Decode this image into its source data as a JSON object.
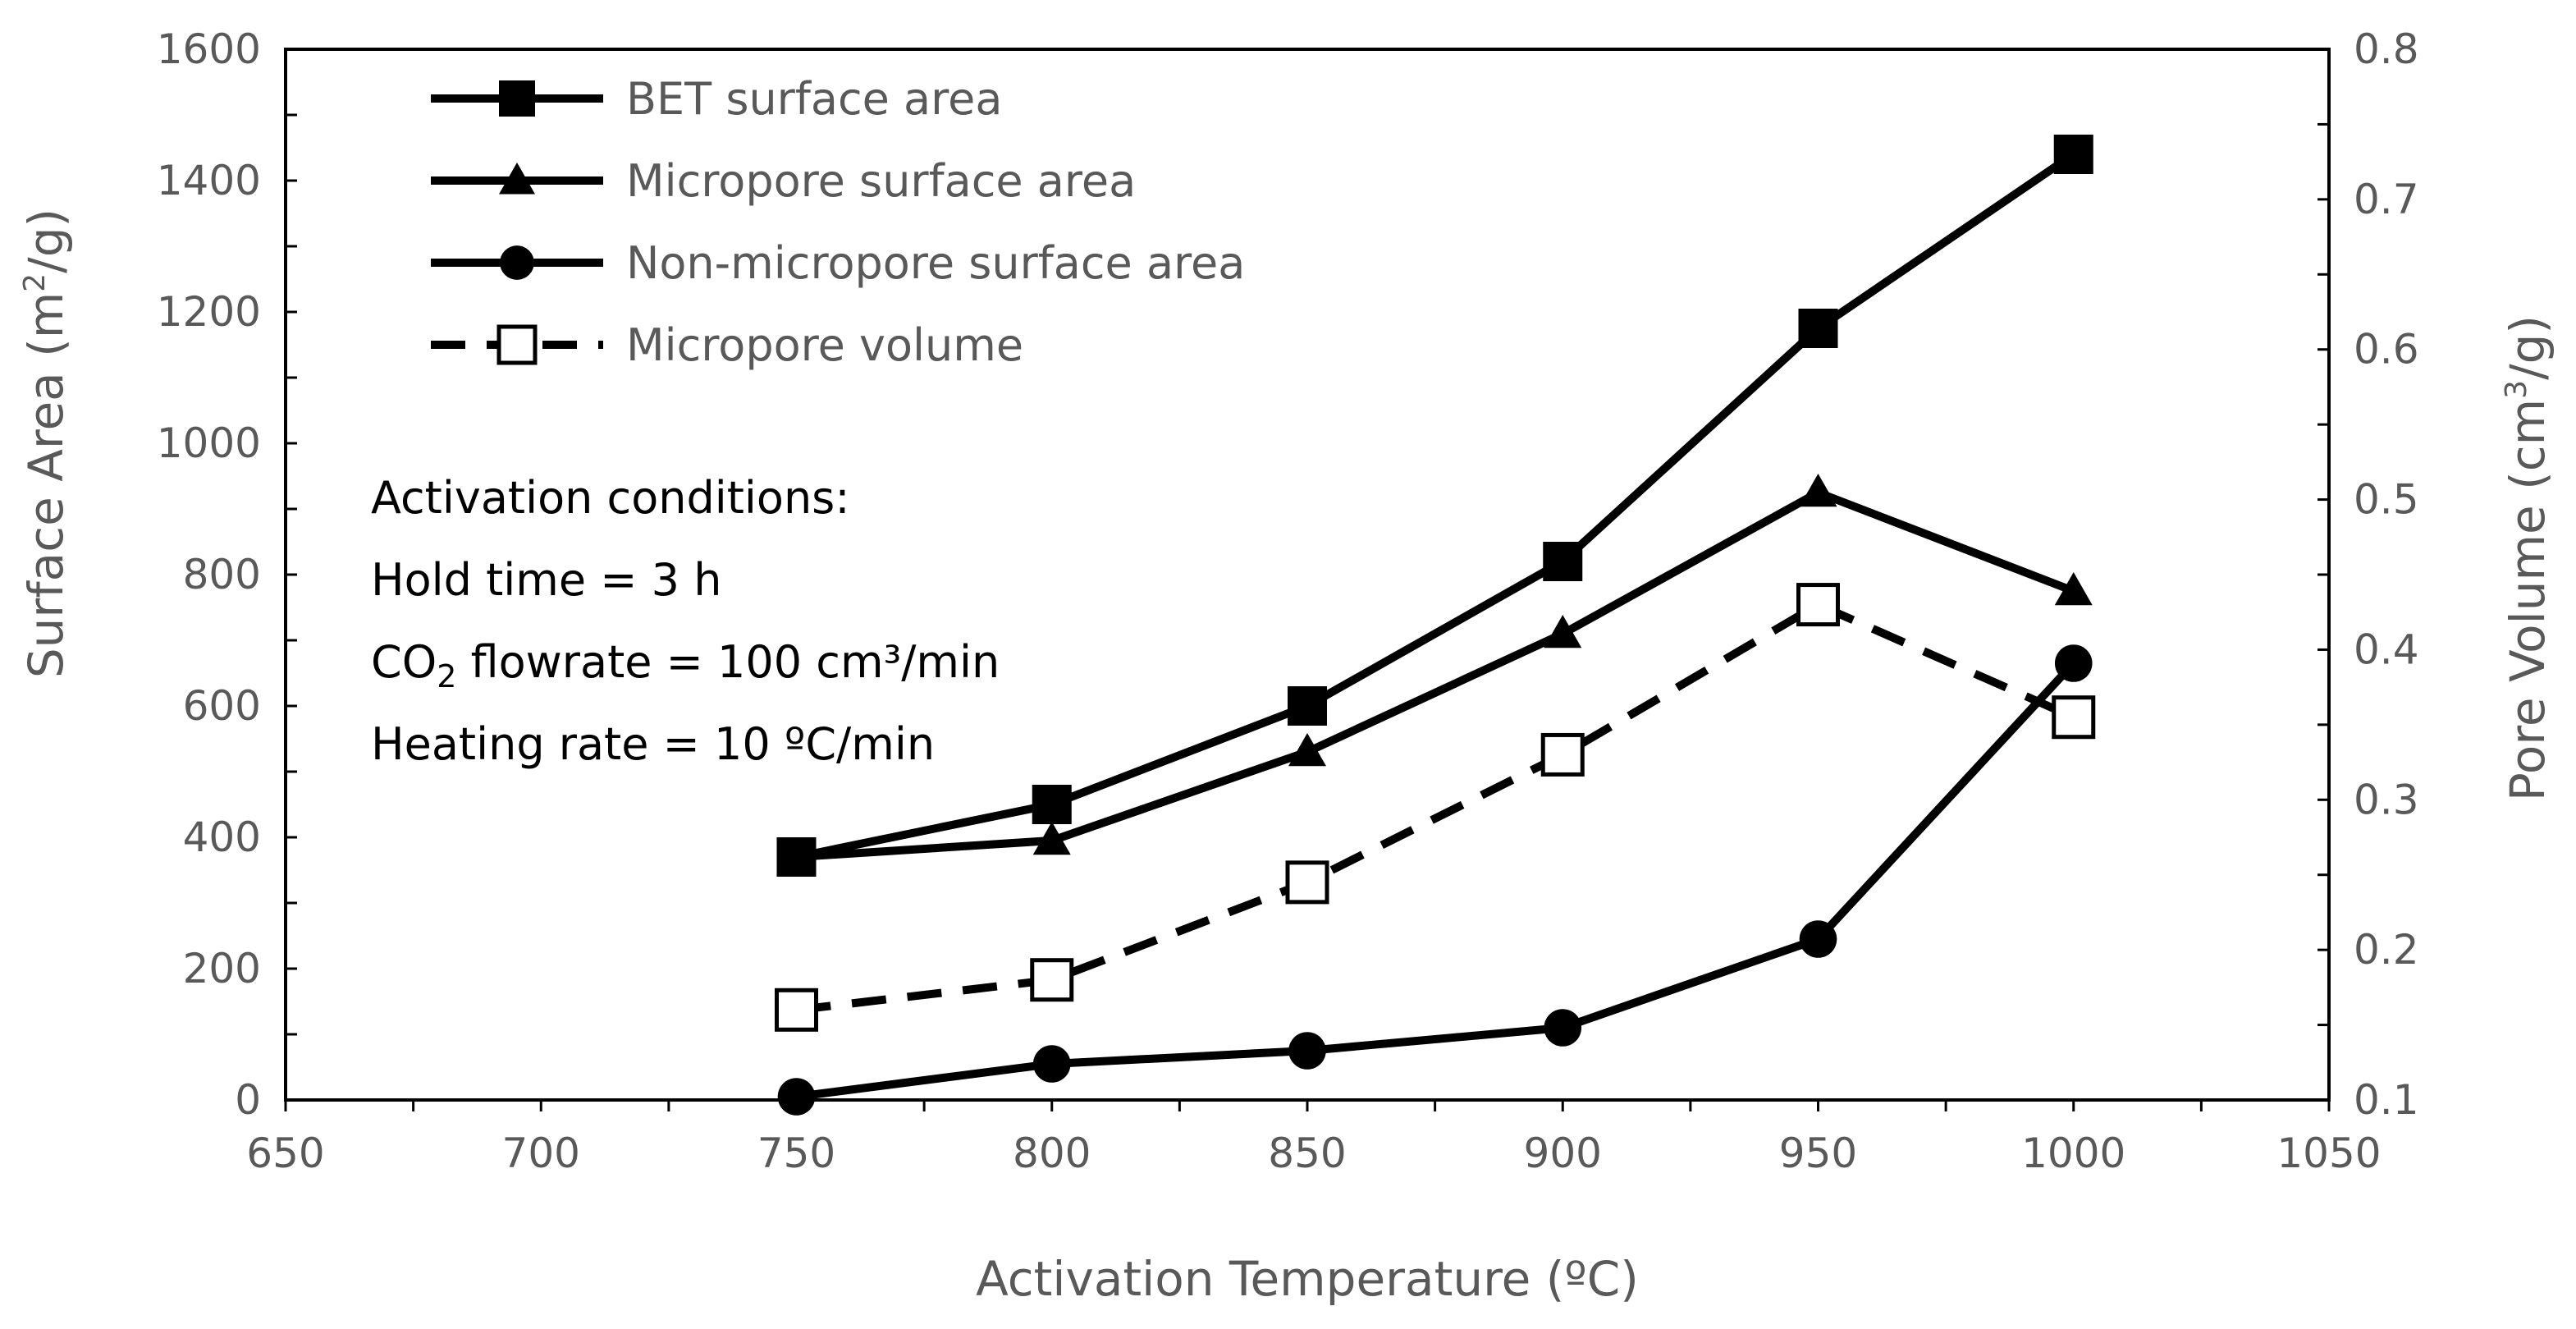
{
  "chart_data": {
    "type": "line",
    "title": "",
    "xlabel": "Activation Temperature (ºC)",
    "ylabel": "Surface Area (m²/g)",
    "y2label": "Pore Volume (cm³/g)",
    "xlim": [
      650,
      1050
    ],
    "ylim": [
      0,
      1600
    ],
    "y2lim": [
      0.1,
      0.8
    ],
    "x_ticks": [
      "650",
      "700",
      "750",
      "800",
      "850",
      "900",
      "950",
      "1000",
      "1050"
    ],
    "y_ticks": [
      "0",
      "200",
      "400",
      "600",
      "800",
      "1000",
      "1200",
      "1400",
      "1600"
    ],
    "y2_ticks": [
      "0.1",
      "0.2",
      "0.3",
      "0.4",
      "0.5",
      "0.6",
      "0.7",
      "0.8"
    ],
    "legend_position": "top-left",
    "x": [
      750,
      800,
      850,
      900,
      950,
      1000
    ],
    "series": [
      {
        "name": "BET surface area",
        "axis": "left",
        "marker": "square-filled",
        "line": "solid",
        "values": [
          370,
          450,
          600,
          820,
          1175,
          1440
        ]
      },
      {
        "name": "Micropore surface area",
        "axis": "left",
        "marker": "triangle-filled",
        "line": "solid",
        "values": [
          370,
          395,
          530,
          710,
          925,
          775
        ]
      },
      {
        "name": "Non-micropore surface area",
        "axis": "left",
        "marker": "circle-filled",
        "line": "solid",
        "values": [
          5,
          55,
          75,
          110,
          245,
          665
        ]
      },
      {
        "name": "Micropore volume",
        "axis": "right",
        "marker": "square-open",
        "line": "dashed",
        "values": [
          0.16,
          0.18,
          0.245,
          0.33,
          0.43,
          0.355
        ]
      }
    ],
    "annotation": {
      "heading": "Activation conditions:",
      "hold_time": "Hold time = 3 h",
      "co2_prefix": "CO",
      "co2_sub": "2",
      "co2_rest": " flowrate = 100 cm³/min",
      "heating_rate": "Heating rate = 10 ºC/min"
    }
  }
}
